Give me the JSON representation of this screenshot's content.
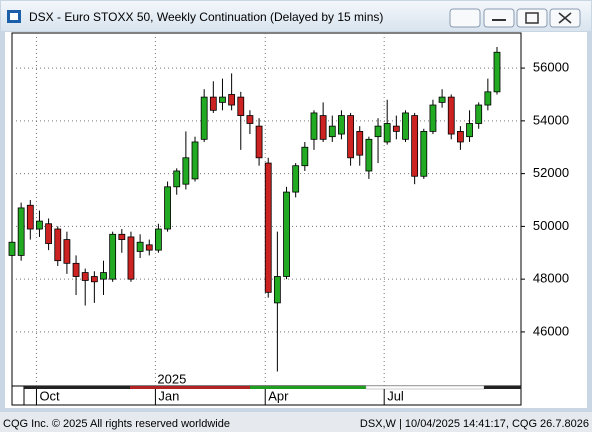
{
  "window_title": "DSX - Euro STOXX 50, Weekly Continuation (Delayed by 15 mins)",
  "footer_left": "CQG Inc. © 2025 All rights reserved worldwide",
  "footer_right": "DSX,W | 10/04/2025 14:41:17, CQG 26.7.8026",
  "chart_data": {
    "type": "candlestick",
    "year_label": "2025",
    "categories": [
      null,
      null,
      null,
      "Oct",
      null,
      null,
      null,
      null,
      null,
      null,
      null,
      null,
      null,
      null,
      null,
      null,
      "Jan",
      null,
      null,
      null,
      null,
      null,
      null,
      null,
      null,
      null,
      null,
      null,
      "Apr",
      null,
      null,
      null,
      null,
      null,
      null,
      null,
      null,
      null,
      null,
      null,
      null,
      "Jul",
      null,
      null,
      null,
      null,
      null,
      null,
      null,
      null,
      null,
      null,
      null,
      null
    ],
    "open": [
      48900,
      48900,
      50800,
      49900,
      50100,
      49900,
      49500,
      48600,
      48250,
      48100,
      48000,
      48000,
      49700,
      49600,
      49050,
      49300,
      49100,
      49900,
      51500,
      51600,
      51800,
      53300,
      54900,
      54700,
      55000,
      54900,
      54200,
      53800,
      52400,
      47100,
      48100,
      51300,
      52300,
      53300,
      54200,
      53400,
      53500,
      54200,
      53600,
      52100,
      53400,
      53200,
      53800,
      53300,
      54200,
      51900,
      53600,
      54700,
      54900,
      53600,
      53400,
      53900,
      54600,
      55100
    ],
    "high": [
      49700,
      50900,
      51000,
      50600,
      50300,
      50000,
      49800,
      48900,
      48400,
      48300,
      48700,
      49800,
      49900,
      49800,
      49700,
      49500,
      50100,
      51700,
      52200,
      53600,
      53400,
      55200,
      55500,
      55600,
      55800,
      55100,
      54400,
      54100,
      52600,
      49800,
      51500,
      52400,
      53200,
      54400,
      54700,
      54200,
      54400,
      54300,
      53800,
      53400,
      54100,
      54800,
      54200,
      54400,
      54300,
      53700,
      54800,
      55200,
      55000,
      53800,
      54400,
      54700,
      55600,
      56800
    ],
    "low": [
      48700,
      48700,
      49500,
      49600,
      49100,
      48500,
      48200,
      47400,
      47000,
      47100,
      47400,
      47900,
      49000,
      47900,
      48800,
      48900,
      49000,
      49800,
      51200,
      51400,
      51700,
      53200,
      54300,
      54400,
      54400,
      52900,
      53500,
      52300,
      47300,
      44500,
      48000,
      51100,
      52100,
      52900,
      53200,
      53200,
      53300,
      52300,
      52300,
      51800,
      52400,
      53100,
      53300,
      53200,
      51600,
      51800,
      53500,
      54500,
      53300,
      52900,
      53200,
      53700,
      54400,
      55000
    ],
    "close": [
      49400,
      50700,
      49900,
      50200,
      49350,
      48700,
      48600,
      48100,
      47950,
      47900,
      48250,
      49700,
      49500,
      48000,
      49400,
      49100,
      49900,
      51500,
      52100,
      52600,
      53200,
      54900,
      54400,
      54900,
      54600,
      54200,
      53900,
      52600,
      47500,
      48100,
      51300,
      52300,
      53000,
      54300,
      53300,
      53800,
      54200,
      52600,
      52700,
      53300,
      53800,
      53900,
      53600,
      54300,
      51900,
      53600,
      54600,
      54900,
      53500,
      53200,
      53900,
      54600,
      55100,
      56600
    ],
    "up_color": "#22aa22",
    "down_color": "#cc2222",
    "ylim": [
      43950,
      57330
    ],
    "yticks": [
      46000,
      48000,
      50000,
      52000,
      54000,
      56000
    ],
    "grid": true
  }
}
